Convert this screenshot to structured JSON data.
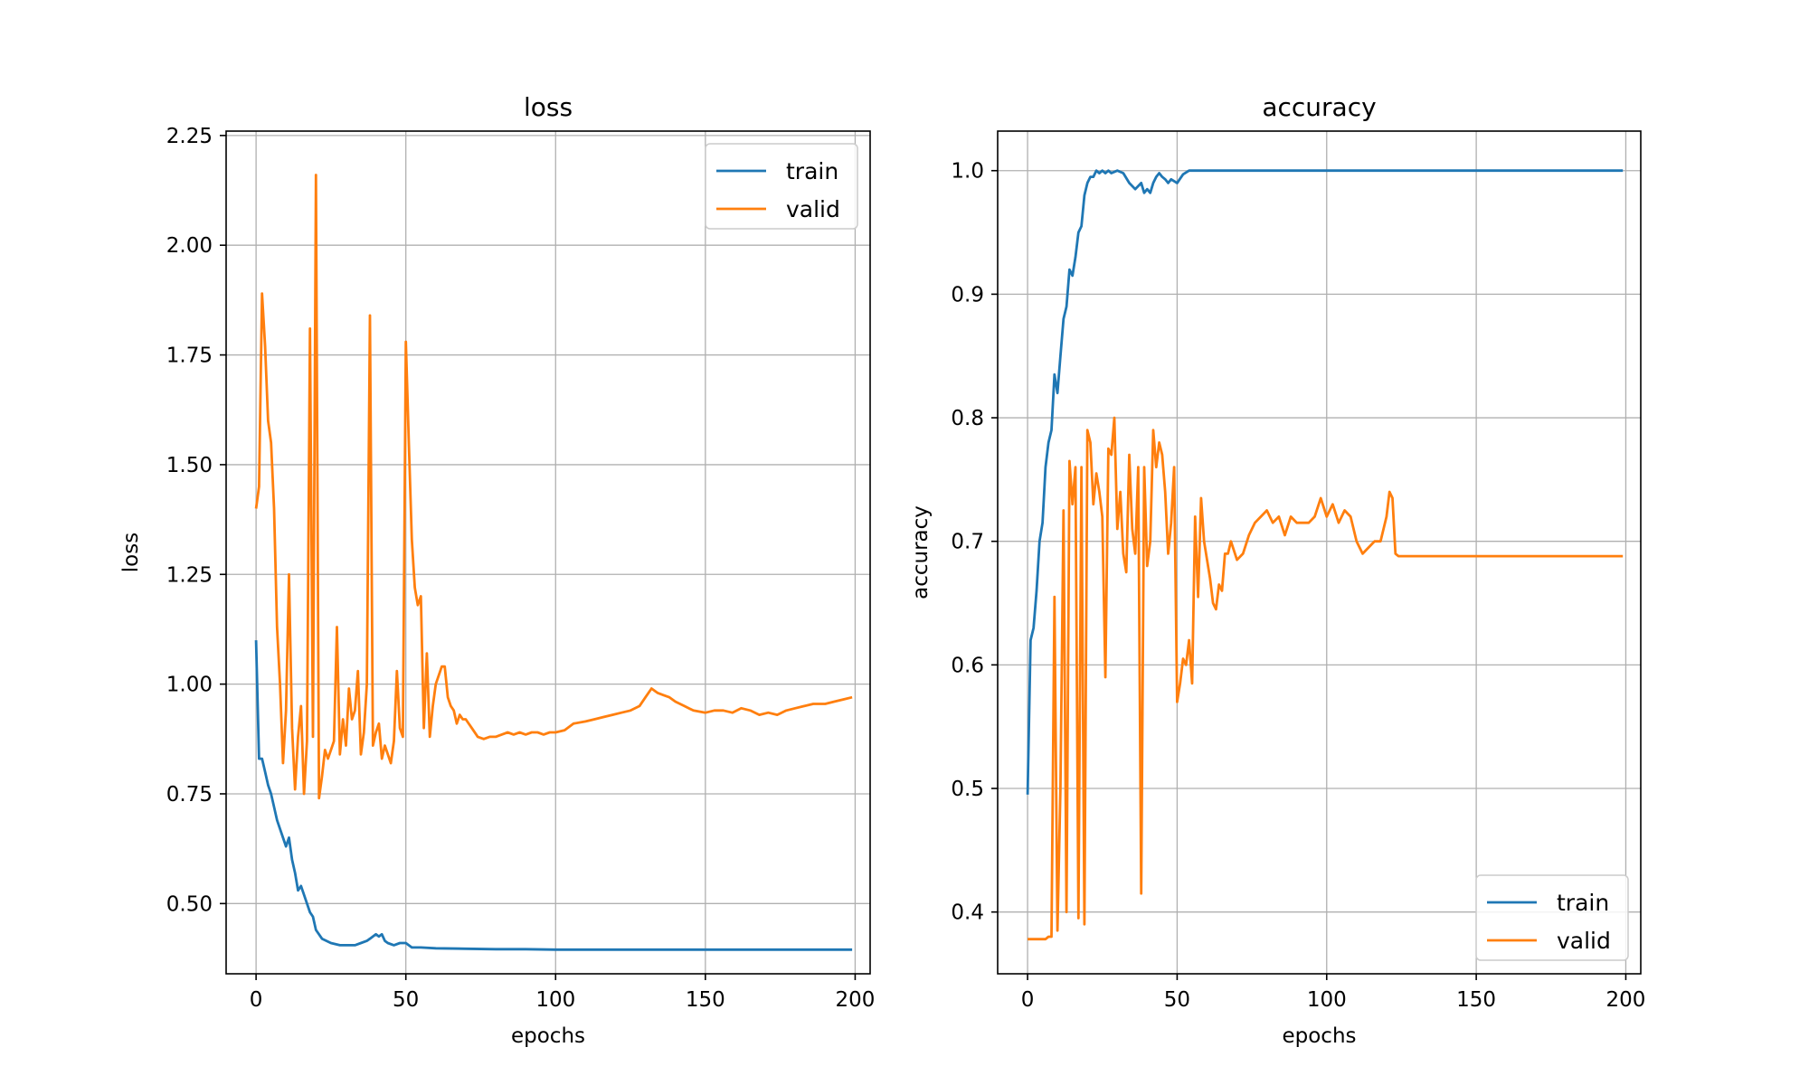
{
  "colors": {
    "train": "#1f77b4",
    "valid": "#ff7f0e",
    "grid": "#b0b0b0"
  },
  "chart_data": [
    {
      "type": "line",
      "title": "loss",
      "xlabel": "epochs",
      "ylabel": "loss",
      "xlim": [
        -10,
        205
      ],
      "ylim": [
        0.34,
        2.26
      ],
      "xticks": [
        0,
        50,
        100,
        150,
        200
      ],
      "xtick_labels": [
        "0",
        "50",
        "100",
        "150",
        "200"
      ],
      "yticks": [
        0.5,
        0.75,
        1.0,
        1.25,
        1.5,
        1.75,
        2.0,
        2.25
      ],
      "ytick_labels": [
        "0.50",
        "0.75",
        "1.00",
        "1.25",
        "1.50",
        "1.75",
        "2.00",
        "2.25"
      ],
      "grid": true,
      "legend_position": "top-right",
      "series": [
        {
          "name": "train",
          "color": "#1f77b4",
          "x": [
            0,
            1,
            2,
            3,
            4,
            5,
            6,
            7,
            8,
            9,
            10,
            11,
            12,
            13,
            14,
            15,
            16,
            17,
            18,
            19,
            20,
            22,
            25,
            28,
            30,
            33,
            35,
            37,
            38,
            39,
            40,
            41,
            42,
            43,
            44,
            46,
            48,
            50,
            52,
            55,
            60,
            70,
            80,
            90,
            100,
            120,
            150,
            180,
            199
          ],
          "y": [
            1.1,
            0.83,
            0.83,
            0.8,
            0.77,
            0.75,
            0.72,
            0.69,
            0.67,
            0.65,
            0.63,
            0.65,
            0.6,
            0.57,
            0.53,
            0.54,
            0.52,
            0.5,
            0.48,
            0.47,
            0.44,
            0.42,
            0.41,
            0.405,
            0.405,
            0.405,
            0.41,
            0.415,
            0.42,
            0.425,
            0.43,
            0.425,
            0.43,
            0.415,
            0.41,
            0.405,
            0.41,
            0.41,
            0.4,
            0.4,
            0.398,
            0.397,
            0.396,
            0.396,
            0.395,
            0.395,
            0.395,
            0.395,
            0.395
          ]
        },
        {
          "name": "valid",
          "color": "#ff7f0e",
          "x": [
            0,
            1,
            2,
            3,
            4,
            5,
            6,
            7,
            8,
            9,
            10,
            11,
            12,
            13,
            14,
            15,
            16,
            17,
            18,
            19,
            20,
            21,
            22,
            23,
            24,
            25,
            26,
            27,
            28,
            29,
            30,
            31,
            32,
            33,
            34,
            35,
            36,
            37,
            38,
            39,
            40,
            41,
            42,
            43,
            44,
            45,
            46,
            47,
            48,
            49,
            50,
            51,
            52,
            53,
            54,
            55,
            56,
            57,
            58,
            59,
            60,
            61,
            62,
            63,
            64,
            65,
            66,
            67,
            68,
            69,
            70,
            72,
            74,
            76,
            78,
            80,
            82,
            84,
            86,
            88,
            90,
            92,
            94,
            96,
            98,
            100,
            103,
            106,
            110,
            113,
            116,
            119,
            122,
            125,
            128,
            130,
            132,
            134,
            136,
            138,
            140,
            143,
            146,
            150,
            153,
            156,
            159,
            162,
            165,
            168,
            171,
            174,
            177,
            180,
            183,
            186,
            190,
            193,
            196,
            199
          ],
          "y": [
            1.4,
            1.45,
            1.89,
            1.77,
            1.6,
            1.55,
            1.4,
            1.13,
            1.0,
            0.82,
            0.94,
            1.25,
            0.9,
            0.76,
            0.88,
            0.95,
            0.75,
            0.87,
            1.81,
            0.88,
            2.16,
            0.74,
            0.79,
            0.85,
            0.83,
            0.85,
            0.87,
            1.13,
            0.84,
            0.92,
            0.86,
            0.99,
            0.92,
            0.94,
            1.03,
            0.84,
            0.89,
            1.0,
            1.84,
            0.86,
            0.89,
            0.91,
            0.83,
            0.86,
            0.84,
            0.82,
            0.87,
            1.03,
            0.9,
            0.88,
            1.78,
            1.55,
            1.33,
            1.22,
            1.18,
            1.2,
            0.9,
            1.07,
            0.88,
            0.95,
            1.0,
            1.02,
            1.04,
            1.04,
            0.97,
            0.95,
            0.94,
            0.91,
            0.93,
            0.92,
            0.92,
            0.9,
            0.88,
            0.875,
            0.88,
            0.88,
            0.885,
            0.89,
            0.885,
            0.89,
            0.885,
            0.89,
            0.89,
            0.885,
            0.89,
            0.89,
            0.895,
            0.91,
            0.915,
            0.92,
            0.925,
            0.93,
            0.935,
            0.94,
            0.95,
            0.97,
            0.99,
            0.98,
            0.975,
            0.97,
            0.96,
            0.95,
            0.94,
            0.935,
            0.94,
            0.94,
            0.935,
            0.945,
            0.94,
            0.93,
            0.935,
            0.93,
            0.94,
            0.945,
            0.95,
            0.955,
            0.955,
            0.96,
            0.965,
            0.97
          ]
        }
      ]
    },
    {
      "type": "line",
      "title": "accuracy",
      "xlabel": "epochs",
      "ylabel": "accuracy",
      "xlim": [
        -10,
        205
      ],
      "ylim": [
        0.35,
        1.032
      ],
      "xticks": [
        0,
        50,
        100,
        150,
        200
      ],
      "xtick_labels": [
        "0",
        "50",
        "100",
        "150",
        "200"
      ],
      "yticks": [
        0.4,
        0.5,
        0.6,
        0.7,
        0.8,
        0.9,
        1.0
      ],
      "ytick_labels": [
        "0.4",
        "0.5",
        "0.6",
        "0.7",
        "0.8",
        "0.9",
        "1.0"
      ],
      "grid": true,
      "legend_position": "bottom-right",
      "series": [
        {
          "name": "train",
          "color": "#1f77b4",
          "x": [
            0,
            1,
            2,
            3,
            4,
            5,
            6,
            7,
            8,
            9,
            10,
            11,
            12,
            13,
            14,
            15,
            16,
            17,
            18,
            19,
            20,
            21,
            22,
            23,
            24,
            25,
            26,
            27,
            28,
            30,
            32,
            34,
            36,
            38,
            39,
            40,
            41,
            42,
            43,
            44,
            45,
            46,
            47,
            48,
            50,
            52,
            54,
            56,
            60,
            80,
            100,
            150,
            199
          ],
          "y": [
            0.495,
            0.62,
            0.63,
            0.66,
            0.7,
            0.715,
            0.76,
            0.78,
            0.79,
            0.835,
            0.82,
            0.85,
            0.88,
            0.89,
            0.92,
            0.915,
            0.93,
            0.95,
            0.955,
            0.98,
            0.99,
            0.995,
            0.995,
            1.0,
            0.998,
            1.0,
            0.998,
            1.0,
            0.998,
            1.0,
            0.998,
            0.99,
            0.985,
            0.99,
            0.982,
            0.985,
            0.982,
            0.99,
            0.995,
            0.998,
            0.995,
            0.993,
            0.99,
            0.993,
            0.99,
            0.997,
            1.0,
            1.0,
            1.0,
            1.0,
            1.0,
            1.0,
            1.0
          ]
        },
        {
          "name": "valid",
          "color": "#ff7f0e",
          "x": [
            0,
            2,
            4,
            6,
            7,
            8,
            9,
            10,
            11,
            12,
            13,
            14,
            15,
            16,
            17,
            18,
            19,
            20,
            21,
            22,
            23,
            24,
            25,
            26,
            27,
            28,
            29,
            30,
            31,
            32,
            33,
            34,
            35,
            36,
            37,
            38,
            39,
            40,
            41,
            42,
            43,
            44,
            45,
            46,
            47,
            48,
            49,
            50,
            51,
            52,
            53,
            54,
            55,
            56,
            57,
            58,
            59,
            60,
            61,
            62,
            63,
            64,
            65,
            66,
            67,
            68,
            70,
            72,
            74,
            76,
            78,
            80,
            82,
            84,
            86,
            88,
            90,
            92,
            94,
            96,
            98,
            100,
            102,
            104,
            106,
            108,
            110,
            112,
            114,
            116,
            118,
            120,
            121,
            122,
            123,
            124,
            125,
            130,
            150,
            170,
            199
          ],
          "y": [
            0.378,
            0.378,
            0.378,
            0.378,
            0.38,
            0.38,
            0.655,
            0.385,
            0.5,
            0.725,
            0.4,
            0.765,
            0.73,
            0.76,
            0.395,
            0.76,
            0.39,
            0.79,
            0.78,
            0.73,
            0.755,
            0.74,
            0.72,
            0.59,
            0.775,
            0.77,
            0.8,
            0.71,
            0.74,
            0.69,
            0.675,
            0.77,
            0.71,
            0.69,
            0.76,
            0.415,
            0.76,
            0.68,
            0.7,
            0.79,
            0.76,
            0.78,
            0.77,
            0.74,
            0.69,
            0.715,
            0.76,
            0.57,
            0.585,
            0.605,
            0.6,
            0.62,
            0.585,
            0.72,
            0.655,
            0.735,
            0.7,
            0.685,
            0.67,
            0.65,
            0.645,
            0.665,
            0.66,
            0.69,
            0.69,
            0.7,
            0.685,
            0.69,
            0.705,
            0.715,
            0.72,
            0.725,
            0.715,
            0.72,
            0.705,
            0.72,
            0.715,
            0.715,
            0.715,
            0.72,
            0.735,
            0.72,
            0.73,
            0.715,
            0.725,
            0.72,
            0.7,
            0.69,
            0.695,
            0.7,
            0.7,
            0.72,
            0.74,
            0.735,
            0.69,
            0.688,
            0.688,
            0.688,
            0.688,
            0.688,
            0.688
          ]
        }
      ]
    }
  ]
}
